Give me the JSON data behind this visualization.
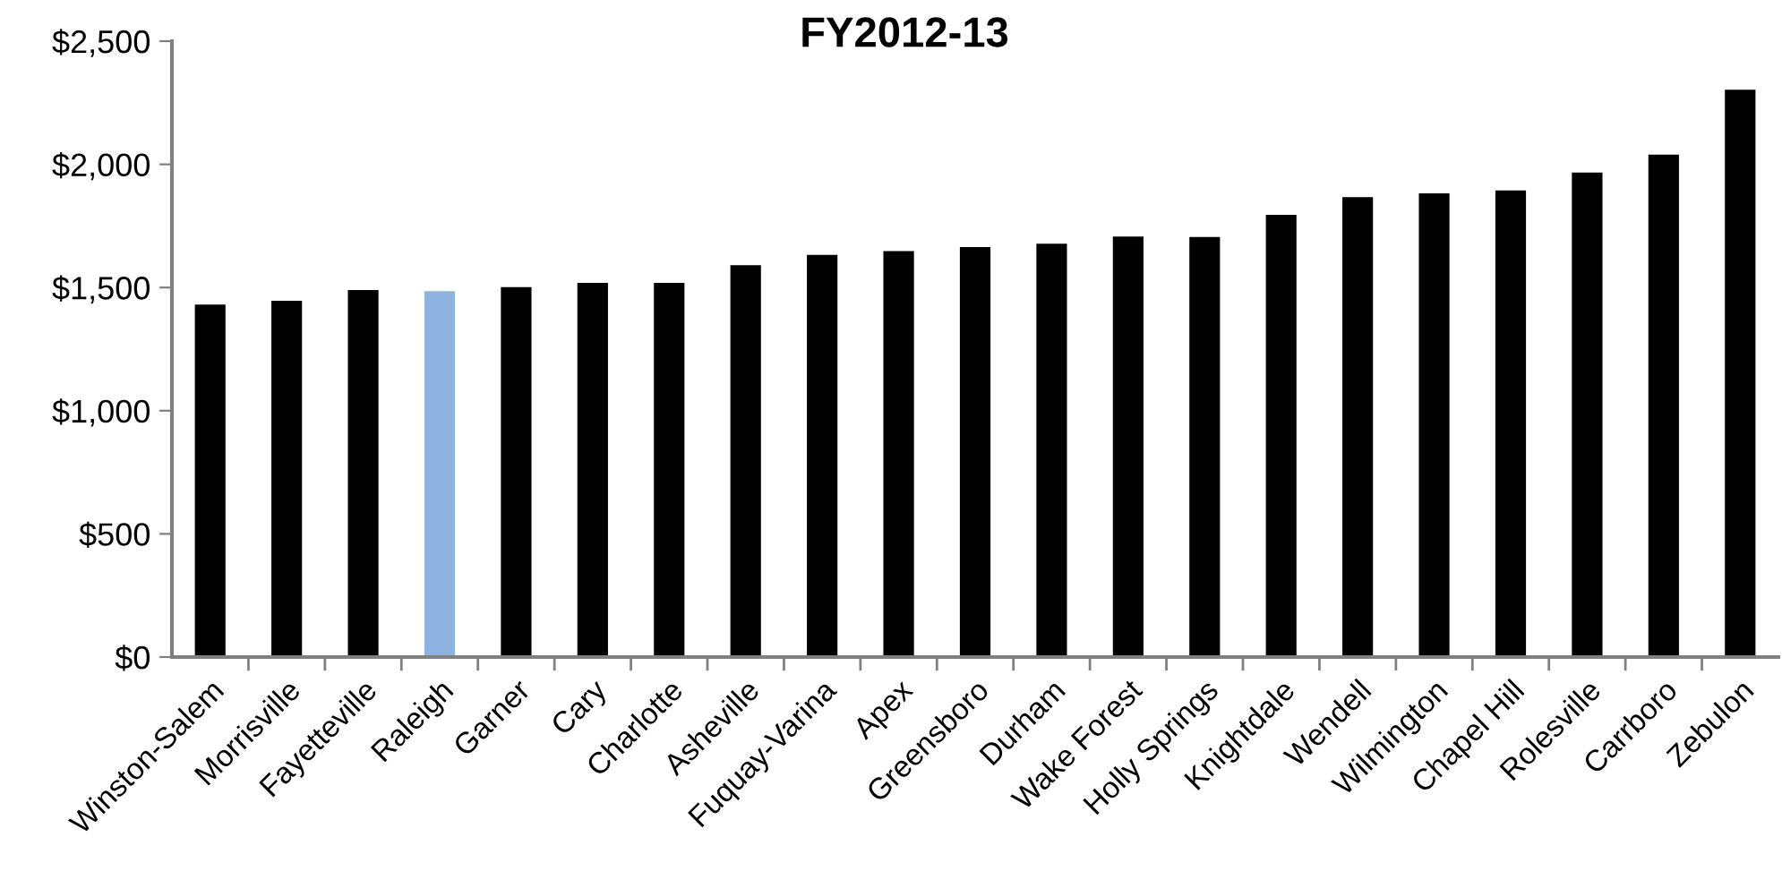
{
  "chart_data": {
    "type": "bar",
    "title": "FY2012-13",
    "categories": [
      "Winston-Salem",
      "Morrisville",
      "Fayetteville",
      "Raleigh",
      "Garner",
      "Cary",
      "Charlotte",
      "Asheville",
      "Fuquay-Varina",
      "Apex",
      "Greensboro",
      "Durham",
      "Wake Forest",
      "Holly Springs",
      "Knightdale",
      "Wendell",
      "Wilmington",
      "Chapel Hill",
      "Rolesville",
      "Carrboro",
      "Zebulon"
    ],
    "values": [
      1431,
      1446,
      1490,
      1485,
      1502,
      1519,
      1519,
      1591,
      1632,
      1648,
      1664,
      1678,
      1707,
      1705,
      1795,
      1867,
      1882,
      1894,
      1967,
      2039,
      2303
    ],
    "colors": [
      "#000000",
      "#000000",
      "#000000",
      "#8db3e2",
      "#000000",
      "#000000",
      "#000000",
      "#000000",
      "#000000",
      "#000000",
      "#000000",
      "#000000",
      "#000000",
      "#000000",
      "#000000",
      "#000000",
      "#000000",
      "#000000",
      "#000000",
      "#000000",
      "#000000"
    ],
    "ylim": [
      0,
      2500
    ],
    "yticks": [
      {
        "value": 0,
        "label": "$0"
      },
      {
        "value": 500,
        "label": "$500"
      },
      {
        "value": 1000,
        "label": "$1,000"
      },
      {
        "value": 1500,
        "label": "$1,500"
      },
      {
        "value": 2000,
        "label": "$2,000"
      },
      {
        "value": 2500,
        "label": "$2,500"
      }
    ],
    "grid": false
  }
}
